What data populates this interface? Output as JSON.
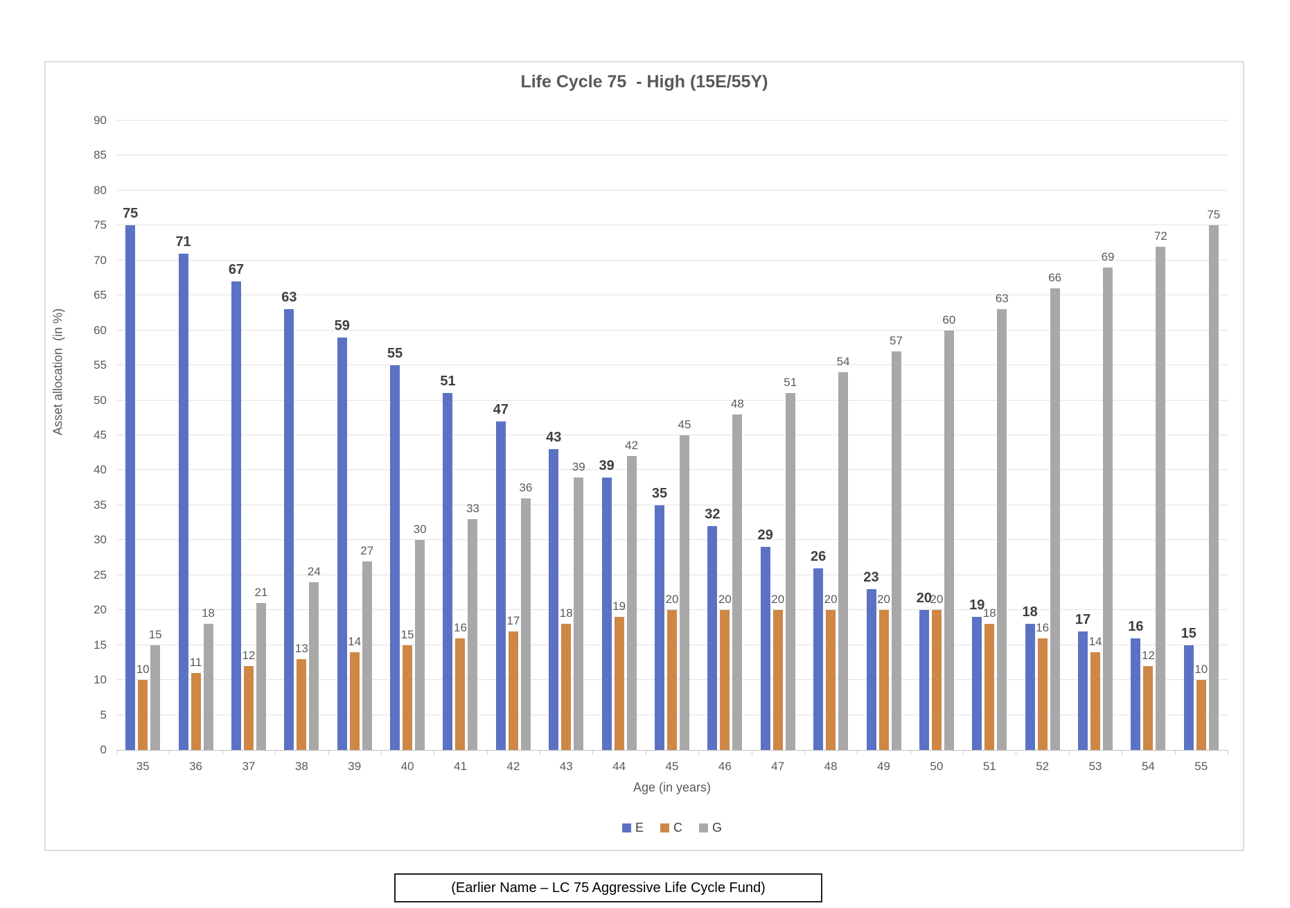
{
  "page": {
    "caption": "(Earlier Name – LC 75 Aggressive Life Cycle Fund)"
  },
  "chart_data": {
    "type": "bar",
    "title": "Life Cycle 75  - High (15E/55Y)",
    "xlabel": "Age (in years)",
    "ylabel": "Asset allocation  (in %)",
    "ylim": [
      0,
      90
    ],
    "ytick_step": 5,
    "grid": true,
    "legend_position": "bottom",
    "categories": [
      "35",
      "36",
      "37",
      "38",
      "39",
      "40",
      "41",
      "42",
      "43",
      "44",
      "45",
      "46",
      "47",
      "48",
      "49",
      "50",
      "51",
      "52",
      "53",
      "54",
      "55"
    ],
    "series": [
      {
        "name": "E",
        "color": "#5b72c4",
        "bold_labels": true,
        "values": [
          75,
          71,
          67,
          63,
          59,
          55,
          51,
          47,
          43,
          39,
          35,
          32,
          29,
          26,
          23,
          20,
          19,
          18,
          17,
          16,
          15
        ]
      },
      {
        "name": "C",
        "color": "#ce8745",
        "bold_labels": false,
        "values": [
          10,
          11,
          12,
          13,
          14,
          15,
          16,
          17,
          18,
          19,
          20,
          20,
          20,
          20,
          20,
          20,
          18,
          16,
          14,
          12,
          10
        ]
      },
      {
        "name": "G",
        "color": "#a8a8a8",
        "bold_labels": false,
        "values": [
          15,
          18,
          21,
          24,
          27,
          30,
          33,
          36,
          39,
          42,
          45,
          48,
          51,
          54,
          57,
          60,
          63,
          66,
          69,
          72,
          75
        ]
      }
    ]
  },
  "colors": {
    "title_text": "#595959",
    "axis_text": "#595959",
    "data_label_text": "#595959",
    "bold_data_label_text": "#3f3f3f",
    "gridline": "#e2e2e2",
    "axis_line": "#bfbfbf",
    "chart_border": "#dcdcdc",
    "caption_border": "#1f1f1f"
  }
}
